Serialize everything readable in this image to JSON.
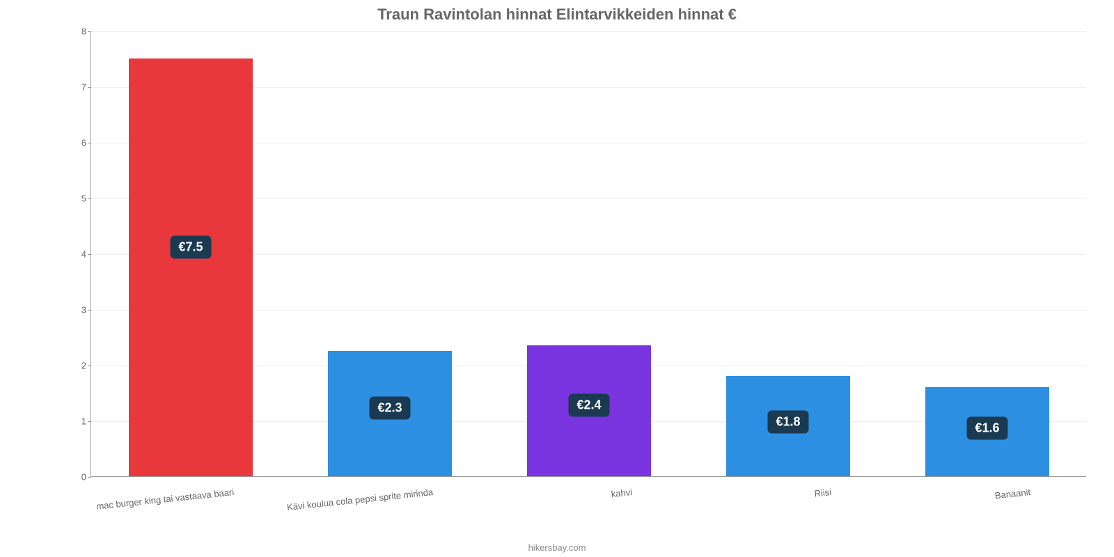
{
  "chart": {
    "type": "bar",
    "title": "Traun Ravintolan hinnat Elintarvikkeiden hinnat €",
    "title_color": "#666666",
    "title_fontsize": 22,
    "background_color": "#ffffff",
    "grid_color": "#eeeeee",
    "axis_color": "#999999",
    "tick_color": "#666666",
    "tick_fontsize": 13,
    "ylim": [
      0,
      8
    ],
    "ytick_step": 1,
    "yticks": [
      0,
      1,
      2,
      3,
      4,
      5,
      6,
      7,
      8
    ],
    "bar_width_ratio": 0.62,
    "categories": [
      "mac burger king tai vastaava baari",
      "Kävi koulua cola pepsi sprite mirinda",
      "kahvi",
      "Riisi",
      "Banaanit"
    ],
    "values": [
      7.5,
      2.25,
      2.35,
      1.8,
      1.6
    ],
    "value_labels": [
      "€7.5",
      "€2.3",
      "€2.4",
      "€1.8",
      "€1.6"
    ],
    "bar_colors": [
      "#e8383b",
      "#2d8fe2",
      "#7a34e0",
      "#2d8fe2",
      "#2d8fe2"
    ],
    "label_bg": "#1a3a52",
    "label_color": "#ffffff",
    "label_fontsize": 18,
    "xlabel_fontsize": 13,
    "xlabel_rotation_deg": -6,
    "footer": "hikersbay.com",
    "footer_color": "#888888"
  }
}
